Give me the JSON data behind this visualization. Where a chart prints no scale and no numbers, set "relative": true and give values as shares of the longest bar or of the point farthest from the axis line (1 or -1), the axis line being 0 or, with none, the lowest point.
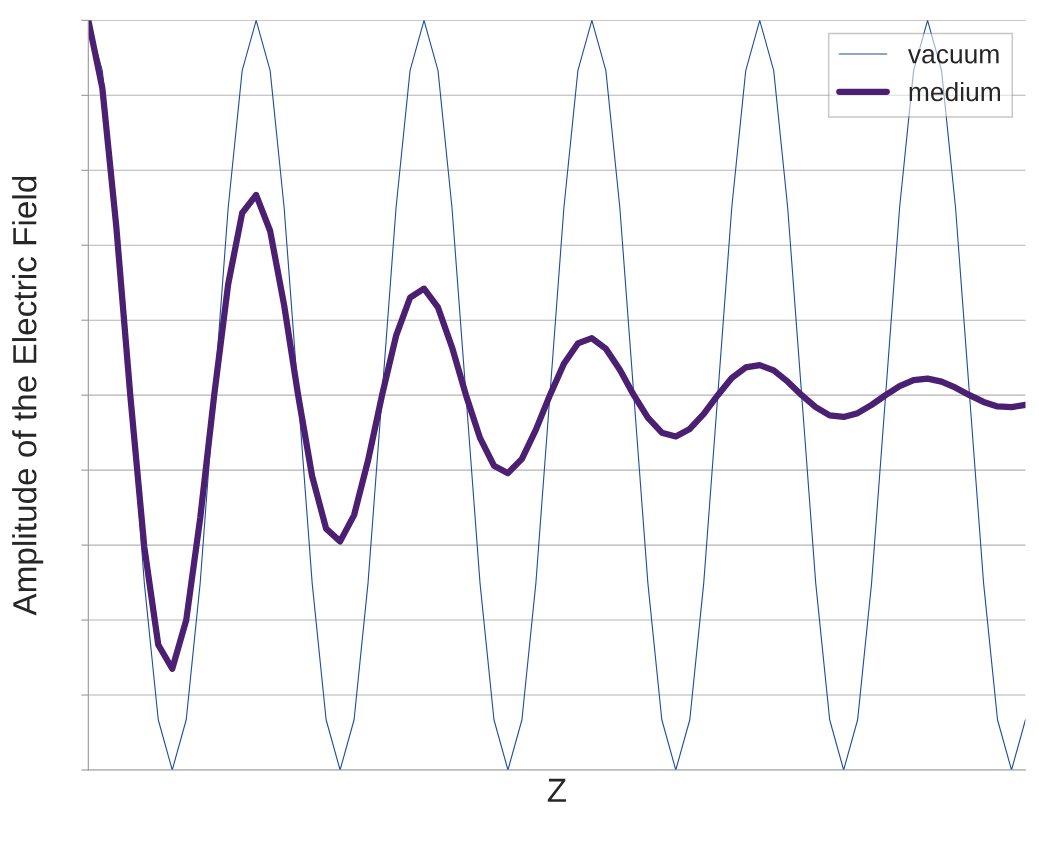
{
  "chart_data": {
    "type": "line",
    "relative": true,
    "xlabel": "Z",
    "ylabel": "Amplitude of the Electric Field",
    "grid": "y",
    "legend": "top right",
    "marker": "none",
    "line_style": "solid",
    "categories": [
      null,
      null,
      null,
      null,
      null,
      null,
      null,
      null,
      null,
      null,
      null,
      null,
      null,
      null,
      null,
      null,
      null,
      null,
      null,
      null,
      null,
      null,
      null,
      null,
      null,
      null,
      null,
      null,
      null,
      null,
      null,
      null,
      null,
      null,
      null,
      null,
      null,
      null,
      null,
      null,
      null,
      null,
      null,
      null,
      null,
      null,
      null,
      null,
      null,
      null,
      null,
      null,
      null,
      null,
      null,
      null,
      null,
      null,
      null,
      null,
      null,
      null,
      null,
      null,
      null,
      null,
      null,
      null
    ],
    "series": [
      {
        "name": "vacuum",
        "color": "#1f4e9c",
        "values": [
          1,
          0.933,
          0.75,
          0.5,
          0.25,
          0.067,
          0,
          0.067,
          0.25,
          0.5,
          0.75,
          0.933,
          1,
          0.933,
          0.75,
          0.5,
          0.25,
          0.067,
          0,
          0.067,
          0.25,
          0.5,
          0.75,
          0.933,
          1,
          0.933,
          0.75,
          0.5,
          0.25,
          0.067,
          0,
          0.067,
          0.25,
          0.5,
          0.75,
          0.933,
          1,
          0.933,
          0.75,
          0.5,
          0.25,
          0.067,
          0,
          0.067,
          0.25,
          0.5,
          0.75,
          0.933,
          1,
          0.933,
          0.75,
          0.5,
          0.25,
          0.067,
          0,
          0.067,
          0.25,
          0.5,
          0.75,
          0.933,
          1,
          0.933,
          0.75,
          0.5,
          0.25,
          0.067,
          0,
          0.067
        ]
      },
      {
        "name": "medium",
        "color": "#4b1f72",
        "values": [
          1.0,
          0.91,
          0.725,
          0.5,
          0.298,
          0.167,
          0.135,
          0.2,
          0.336,
          0.5,
          0.648,
          0.743,
          0.767,
          0.719,
          0.62,
          0.5,
          0.392,
          0.322,
          0.305,
          0.34,
          0.413,
          0.5,
          0.579,
          0.63,
          0.642,
          0.617,
          0.564,
          0.5,
          0.443,
          0.406,
          0.396,
          0.415,
          0.454,
          0.5,
          0.542,
          0.569,
          0.576,
          0.562,
          0.534,
          0.5,
          0.47,
          0.45,
          0.445,
          0.455,
          0.475,
          0.5,
          0.523,
          0.537,
          0.54,
          0.533,
          0.518,
          0.5,
          0.484,
          0.473,
          0.471,
          0.476,
          0.487,
          0.5,
          0.512,
          0.52,
          0.522,
          0.518,
          0.51,
          0.5,
          0.491,
          0.485,
          0.484,
          0.487
        ]
      }
    ]
  }
}
